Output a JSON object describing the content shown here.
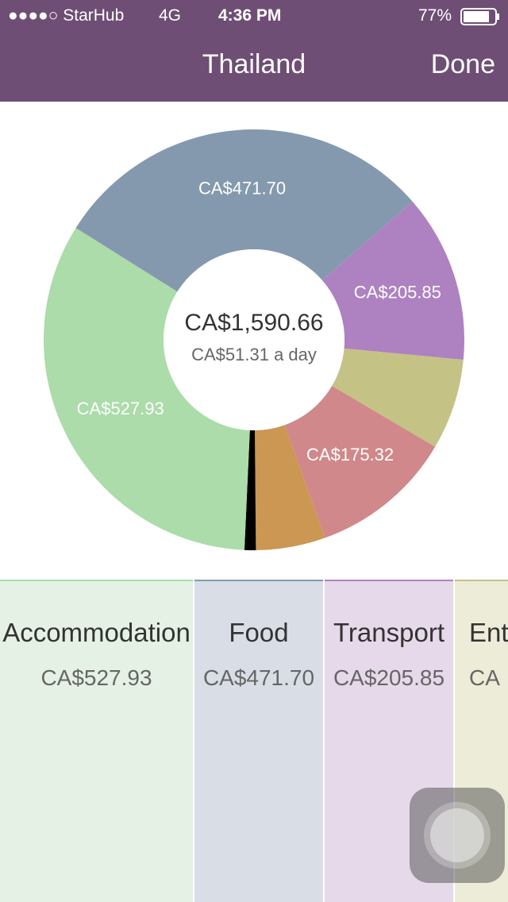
{
  "status_bar": {
    "carrier": "●●●●○ StarHub",
    "network": "4G",
    "time": "4:36 PM",
    "battery": "77%"
  },
  "nav": {
    "title": "Thailand",
    "action": "Done"
  },
  "chart_data": {
    "type": "donut",
    "values": [
      471.7,
      205.85,
      111,
      175.32,
      85,
      13.86,
      527.93
    ],
    "value_labels": [
      "CA$471.70",
      "CA$205.85",
      null,
      "CA$175.32",
      null,
      null,
      "CA$527.93"
    ],
    "colors": [
      "#8499ae",
      "#ae82c0",
      "#c4c285",
      "#d0888b",
      "#cb9752",
      "#000000",
      "#abdcaa"
    ],
    "total_label": "CA$1,590.66",
    "subtitle": "CA$51.31 a day"
  },
  "cards": [
    {
      "name": "Accommodation",
      "amount": "CA$527.93"
    },
    {
      "name": "Food",
      "amount": "CA$471.70"
    },
    {
      "name": "Transport",
      "amount": "CA$205.85"
    },
    {
      "name": "Ente",
      "amount": "CA"
    }
  ]
}
